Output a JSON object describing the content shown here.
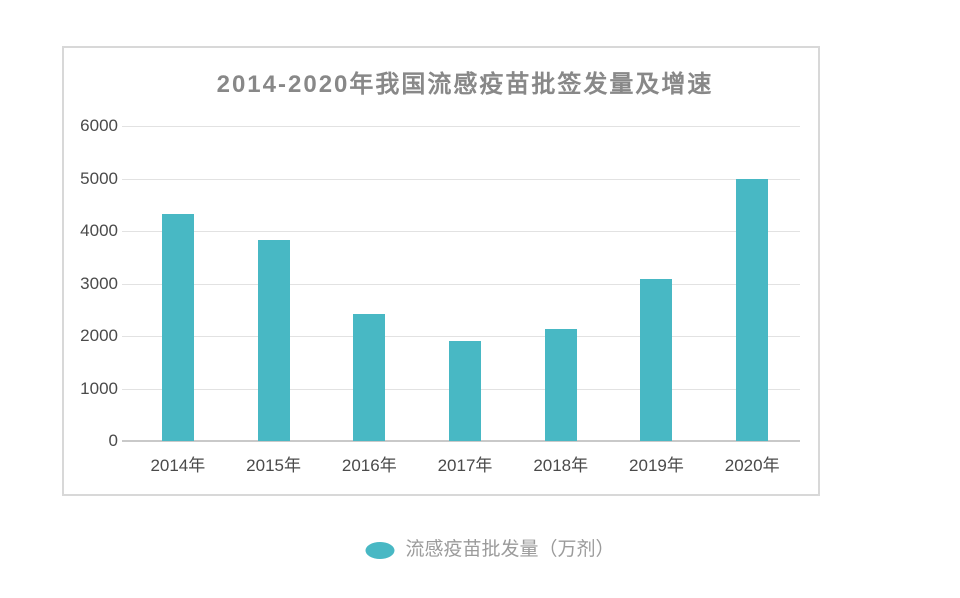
{
  "chart": {
    "title": "2014-2020年我国流感疫苗批签发量及增速",
    "legend_label": "流感疫苗批发量（万剂）"
  },
  "chart_data": {
    "type": "bar",
    "title": "2014-2020年我国流感疫苗批签发量及增速",
    "categories": [
      "2014年",
      "2015年",
      "2016年",
      "2017年",
      "2018年",
      "2019年",
      "2020年"
    ],
    "series": [
      {
        "name": "流感疫苗批发量（万剂）",
        "values": [
          4333,
          3834,
          2428,
          1906,
          2132,
          3078,
          5000
        ]
      }
    ],
    "xlabel": "",
    "ylabel": "",
    "ylim": [
      0,
      6000
    ],
    "yticks": [
      0,
      1000,
      2000,
      3000,
      4000,
      5000,
      6000
    ],
    "grid": true,
    "legend_position": "bottom"
  },
  "colors": {
    "bar": "#48b8c4",
    "title_text": "#888888",
    "axis_text": "#4a4a4a",
    "legend_text": "#9b9b9b",
    "gridline": "#e2e2e2",
    "baseline": "#c9c9c9",
    "card_border": "#d8d8d8"
  }
}
